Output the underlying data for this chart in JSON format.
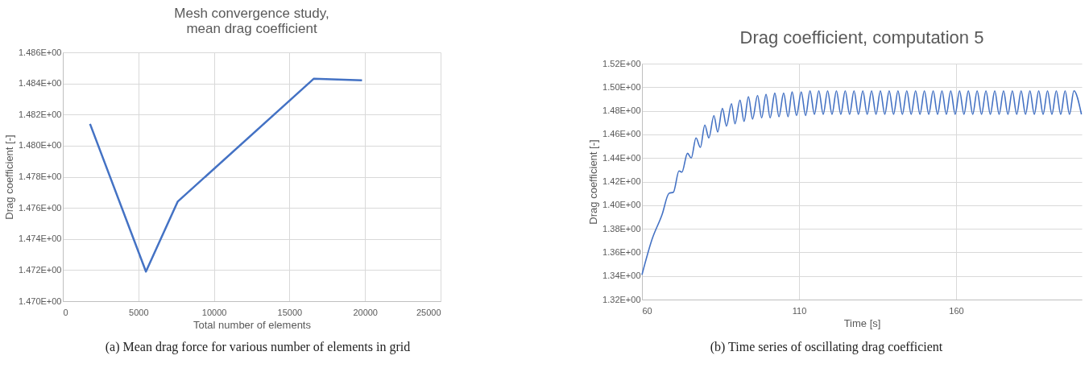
{
  "chart_data": [
    {
      "type": "line",
      "title": "Mesh convergence study,\nmean drag coefficient",
      "xlabel": "Total number of elements",
      "ylabel": "Drag coefficient [-]",
      "x": [
        1800,
        5500,
        7600,
        16600,
        19800
      ],
      "series": [
        {
          "color": "#4472c4",
          "values": [
            1.4814,
            1.4719,
            1.4764,
            1.4843,
            1.4842
          ]
        }
      ],
      "xlim": [
        0,
        25000
      ],
      "xticks": [
        0,
        5000,
        10000,
        15000,
        20000,
        25000
      ],
      "ylim": [
        1.47,
        1.486
      ],
      "yticks": [
        {
          "value": 1.47,
          "label": "1.470E+00"
        },
        {
          "value": 1.472,
          "label": "1.472E+00"
        },
        {
          "value": 1.474,
          "label": "1.474E+00"
        },
        {
          "value": 1.476,
          "label": "1.476E+00"
        },
        {
          "value": 1.478,
          "label": "1.478E+00"
        },
        {
          "value": 1.48,
          "label": "1.480E+00"
        },
        {
          "value": 1.482,
          "label": "1.482E+00"
        },
        {
          "value": 1.484,
          "label": "1.484E+00"
        },
        {
          "value": 1.486,
          "label": "1.486E+00"
        }
      ],
      "grid": true,
      "annotations": [
        "(a) Mean drag force for various number of elements in grid"
      ]
    },
    {
      "type": "line",
      "title": "Drag coefficient, computation 5",
      "xlabel": "Time [s]",
      "ylabel": "Drag coefficient [-]",
      "x": [
        60,
        63.2,
        66.4,
        68.6,
        70.0,
        71.8,
        72.7,
        74.5,
        75.7,
        77.2,
        78.6,
        80.0,
        81.3,
        82.9,
        84.1,
        85.6,
        86.9,
        88.5,
        89.6,
        91.2,
        92.5,
        93.9,
        95.2,
        96.8,
        98.1,
        99.5,
        100.8,
        102.3,
        103.6,
        105.1,
        106.5,
        107.8,
        109.2,
        110.7,
        112.1,
        113.5,
        114.9,
        116.3,
        117.7,
        119.1,
        120.5,
        121.9,
        123.3,
        124.7,
        126.1,
        127.5,
        128.9,
        130.3,
        131.7,
        133.1,
        134.5,
        135.9,
        137.3,
        138.7,
        140.1,
        141.5,
        142.9,
        144.3,
        145.7,
        147.1,
        148.5,
        149.9,
        151.3,
        152.7,
        154.1,
        155.5,
        156.9,
        158.3,
        159.7,
        161.1,
        162.5,
        163.9,
        165.3,
        166.7,
        168.1,
        169.5,
        170.9,
        172.3,
        173.7,
        175.1,
        176.5,
        177.9,
        179.3,
        180.7,
        182.1,
        183.5,
        184.9,
        186.3,
        187.7,
        189.1,
        190.5,
        191.9,
        193.3,
        194.7,
        196.1,
        197.5,
        199.9
      ],
      "series": [
        {
          "color": "#4472c4",
          "values": [
            1.341,
            1.371,
            1.392,
            1.41,
            1.411,
            1.429,
            1.428,
            1.444,
            1.44,
            1.457,
            1.449,
            1.468,
            1.457,
            1.476,
            1.462,
            1.482,
            1.467,
            1.486,
            1.469,
            1.489,
            1.471,
            1.492,
            1.473,
            1.493,
            1.474,
            1.494,
            1.474,
            1.495,
            1.475,
            1.495,
            1.475,
            1.496,
            1.476,
            1.496,
            1.476,
            1.497,
            1.477,
            1.497,
            1.477,
            1.497,
            1.477,
            1.497,
            1.477,
            1.497,
            1.477,
            1.497,
            1.477,
            1.497,
            1.477,
            1.497,
            1.477,
            1.497,
            1.477,
            1.497,
            1.477,
            1.497,
            1.477,
            1.497,
            1.477,
            1.497,
            1.477,
            1.497,
            1.477,
            1.497,
            1.477,
            1.497,
            1.477,
            1.497,
            1.477,
            1.497,
            1.477,
            1.497,
            1.477,
            1.497,
            1.477,
            1.497,
            1.477,
            1.497,
            1.477,
            1.497,
            1.477,
            1.497,
            1.477,
            1.497,
            1.477,
            1.497,
            1.477,
            1.497,
            1.477,
            1.497,
            1.477,
            1.497,
            1.477,
            1.497,
            1.477,
            1.497,
            1.477
          ]
        }
      ],
      "xlim": [
        60,
        200
      ],
      "xticks": [
        60,
        110,
        160
      ],
      "ylim": [
        1.32,
        1.52
      ],
      "yticks": [
        {
          "value": 1.32,
          "label": "1.32E+00"
        },
        {
          "value": 1.34,
          "label": "1.34E+00"
        },
        {
          "value": 1.36,
          "label": "1.36E+00"
        },
        {
          "value": 1.38,
          "label": "1.38E+00"
        },
        {
          "value": 1.4,
          "label": "1.40E+00"
        },
        {
          "value": 1.42,
          "label": "1.42E+00"
        },
        {
          "value": 1.44,
          "label": "1.44E+00"
        },
        {
          "value": 1.46,
          "label": "1.46E+00"
        },
        {
          "value": 1.48,
          "label": "1.48E+00"
        },
        {
          "value": 1.5,
          "label": "1.50E+00"
        },
        {
          "value": 1.52,
          "label": "1.52E+00"
        }
      ],
      "grid": true,
      "annotations": [
        "(b) Time series of oscillating drag coefficient"
      ]
    }
  ]
}
